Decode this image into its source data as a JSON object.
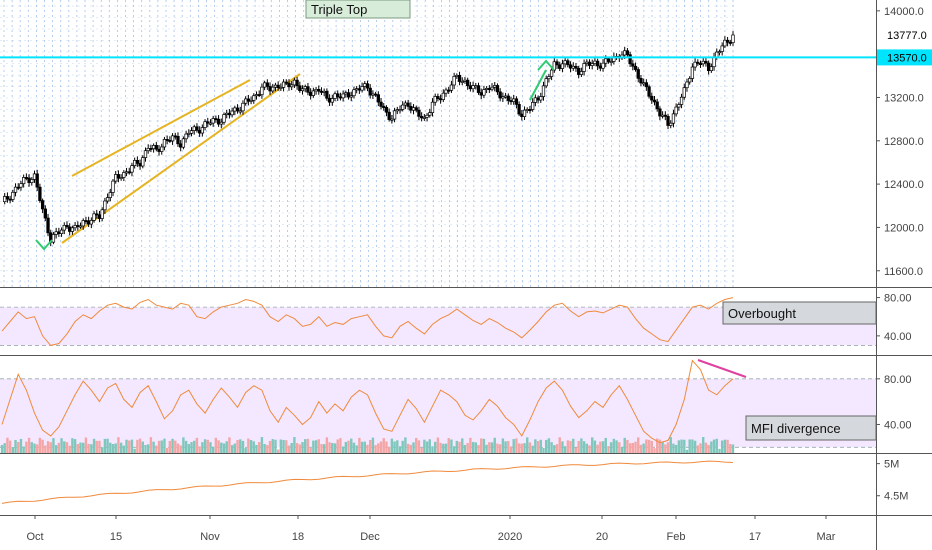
{
  "chart_data": {
    "type": "candlestick",
    "price_panel": {
      "y_ticks": [
        14000,
        13200,
        12800,
        12400,
        12000,
        11600
      ],
      "y_tick_labels": [
        "14000.0",
        "13200.0",
        "12800.0",
        "12400.0",
        "12000.0",
        "11600.0"
      ],
      "ylim": [
        11450,
        14100
      ],
      "last_price_label": "13777.0",
      "resistance_price": 13570,
      "resistance_label": "13570.0",
      "close_series": [
        12220,
        12300,
        12380,
        12450,
        12470,
        12150,
        11900,
        11950,
        12020,
        11980,
        12050,
        12080,
        12100,
        12300,
        12450,
        12500,
        12560,
        12600,
        12750,
        12700,
        12800,
        12820,
        12780,
        12880,
        12900,
        12950,
        12980,
        13000,
        13050,
        13100,
        13150,
        13200,
        13300,
        13280,
        13320,
        13300,
        13350,
        13260,
        13250,
        13280,
        13180,
        13220,
        13200,
        13250,
        13280,
        13300,
        13200,
        13080,
        13020,
        13100,
        13150,
        13050,
        13000,
        13150,
        13200,
        13300,
        13380,
        13350,
        13280,
        13250,
        13300,
        13250,
        13200,
        13150,
        13050,
        13100,
        13200,
        13350,
        13500,
        13520,
        13480,
        13450,
        13500,
        13520,
        13500,
        13550,
        13600,
        13580,
        13450,
        13300,
        13200,
        13050,
        12950,
        13100,
        13250,
        13500,
        13520,
        13480,
        13600,
        13700,
        13777
      ],
      "annotations": [
        {
          "kind": "label",
          "text": "Triple Top"
        },
        {
          "kind": "rising-channel",
          "color": "#e6b422"
        }
      ]
    },
    "rsi_panel": {
      "y_ticks": [
        80,
        40
      ],
      "y_tick_labels": [
        "80.00",
        "40.00"
      ],
      "ylim": [
        20,
        90
      ],
      "band": [
        30,
        70
      ],
      "values": [
        45,
        55,
        65,
        58,
        60,
        40,
        30,
        32,
        42,
        55,
        62,
        58,
        66,
        72,
        74,
        70,
        68,
        75,
        78,
        72,
        70,
        68,
        74,
        72,
        60,
        58,
        65,
        70,
        72,
        74,
        78,
        76,
        72,
        60,
        55,
        62,
        58,
        50,
        52,
        60,
        50,
        54,
        52,
        58,
        60,
        62,
        50,
        40,
        38,
        50,
        55,
        48,
        42,
        52,
        58,
        62,
        68,
        62,
        56,
        52,
        58,
        54,
        48,
        44,
        38,
        46,
        55,
        65,
        72,
        74,
        66,
        60,
        65,
        66,
        64,
        68,
        72,
        70,
        58,
        48,
        42,
        36,
        34,
        46,
        58,
        70,
        72,
        68,
        74,
        78,
        80
      ],
      "note": "Overbought"
    },
    "mfi_panel": {
      "y_ticks": [
        80,
        40
      ],
      "y_tick_labels": [
        "80.00",
        "40.00"
      ],
      "ylim": [
        15,
        100
      ],
      "band": [
        20,
        80
      ],
      "values": [
        40,
        62,
        84,
        70,
        50,
        35,
        30,
        38,
        52,
        66,
        78,
        70,
        60,
        72,
        76,
        62,
        55,
        68,
        74,
        60,
        45,
        52,
        66,
        70,
        58,
        50,
        62,
        72,
        64,
        55,
        68,
        74,
        70,
        52,
        42,
        55,
        48,
        40,
        46,
        60,
        50,
        58,
        52,
        64,
        70,
        66,
        50,
        36,
        34,
        48,
        62,
        54,
        42,
        56,
        70,
        66,
        60,
        48,
        44,
        52,
        62,
        56,
        46,
        40,
        30,
        44,
        60,
        72,
        78,
        70,
        56,
        46,
        52,
        60,
        55,
        66,
        74,
        62,
        48,
        34,
        28,
        24,
        26,
        40,
        62,
        96,
        88,
        70,
        66,
        74,
        80
      ],
      "divergence_color": "#e040a0",
      "note": "MFI divergence"
    },
    "cumulative_panel": {
      "y_ticks": [
        5000000,
        4500000
      ],
      "y_tick_labels": [
        "5M",
        "4.5M"
      ],
      "ylim": [
        4200000,
        5150000
      ],
      "values_start": 4380000,
      "values_end": 5030000
    },
    "x_tick_labels": [
      "Oct",
      "15",
      "Nov",
      "18",
      "Dec",
      "2020",
      "20",
      "Feb",
      "17",
      "Mar"
    ],
    "colors": {
      "candle_up": "#ffffff",
      "candle_down": "#000000",
      "volume_up": "#7fc7bd",
      "volume_down": "#f4a6a6",
      "indicator_line": "#f08a3c",
      "resistance_line": "#00e5ff",
      "band_fill": "#f3e8ff",
      "label_box": "#d5d8dc",
      "triple_top_box": "#d7ecd9",
      "marker_green": "#2ecc71"
    }
  }
}
